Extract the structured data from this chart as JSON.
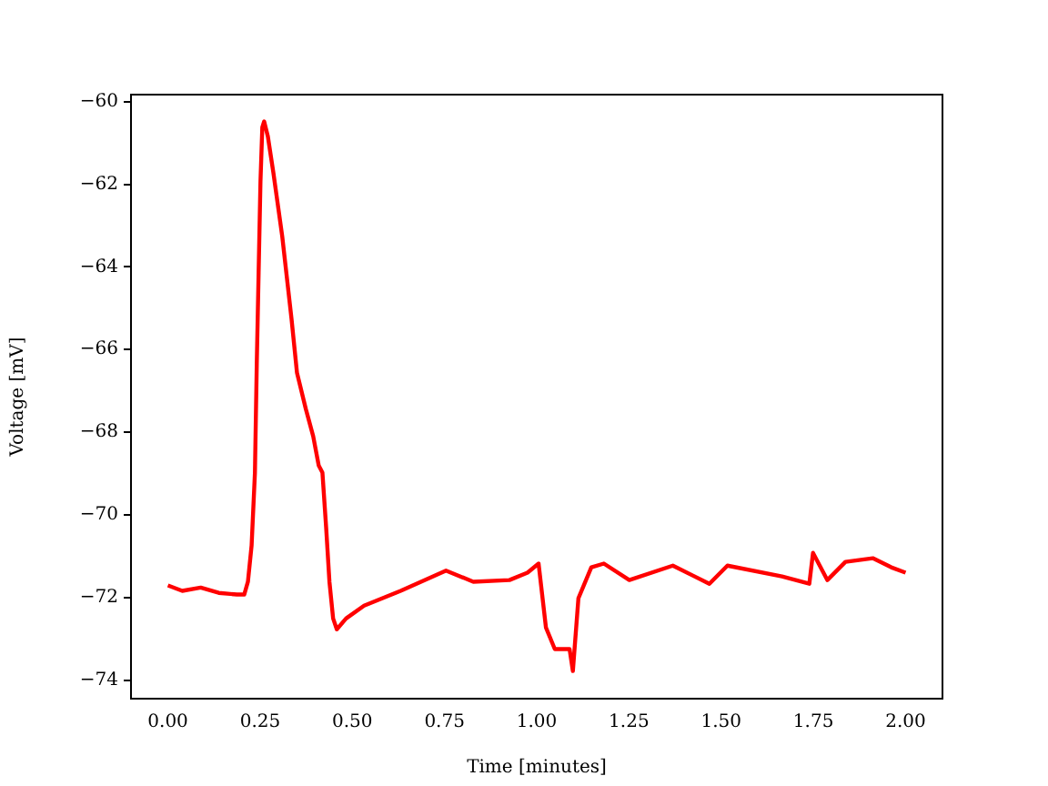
{
  "chart_data": {
    "type": "line",
    "xlabel": "Time [minutes]",
    "ylabel": "Voltage [mV]",
    "xlim": [
      -0.1,
      2.1
    ],
    "ylim": [
      -74.45,
      -59.83
    ],
    "xticks": [
      {
        "value": 0,
        "label": "0.00"
      },
      {
        "value": 0.25,
        "label": "0.25"
      },
      {
        "value": 0.5,
        "label": "0.50"
      },
      {
        "value": 0.75,
        "label": "0.75"
      },
      {
        "value": 1,
        "label": "1.00"
      },
      {
        "value": 1.25,
        "label": "1.25"
      },
      {
        "value": 1.5,
        "label": "1.50"
      },
      {
        "value": 1.75,
        "label": "1.75"
      },
      {
        "value": 2,
        "label": "2.00"
      }
    ],
    "yticks": [
      -74,
      -72,
      -70,
      -68,
      -66,
      -64,
      -62,
      -60
    ],
    "grid": false,
    "legend": false,
    "marker": "none",
    "line_style": "solid",
    "series": [
      {
        "color": "#ff0000",
        "x": [
          0,
          0.039,
          0.089,
          0.138,
          0.187,
          0.207,
          0.217,
          0.227,
          0.236,
          0.241,
          0.246,
          0.251,
          0.256,
          0.261,
          0.271,
          0.286,
          0.31,
          0.335,
          0.35,
          0.374,
          0.394,
          0.409,
          0.419,
          0.429,
          0.438,
          0.448,
          0.458,
          0.483,
          0.532,
          0.631,
          0.754,
          0.828,
          0.926,
          0.975,
          1.005,
          1.025,
          1.049,
          1.089,
          1.098,
          1.113,
          1.148,
          1.182,
          1.251,
          1.369,
          1.468,
          1.517,
          1.665,
          1.739,
          1.749,
          1.788,
          1.837,
          1.911,
          1.961,
          2.0
        ],
        "values": [
          -71.71,
          -71.84,
          -71.76,
          -71.89,
          -71.93,
          -71.93,
          -71.62,
          -70.74,
          -68.98,
          -66.34,
          -64.14,
          -61.94,
          -60.62,
          -60.48,
          -60.84,
          -61.72,
          -63.26,
          -65.24,
          -66.56,
          -67.44,
          -68.1,
          -68.81,
          -68.98,
          -70.3,
          -71.62,
          -72.51,
          -72.77,
          -72.51,
          -72.2,
          -71.84,
          -71.35,
          -71.62,
          -71.58,
          -71.4,
          -71.18,
          -72.73,
          -73.25,
          -73.25,
          -73.78,
          -72.02,
          -71.27,
          -71.18,
          -71.58,
          -71.23,
          -71.67,
          -71.23,
          -71.49,
          -71.67,
          -70.92,
          -71.58,
          -71.14,
          -71.05,
          -71.27,
          -71.4
        ]
      }
    ]
  }
}
